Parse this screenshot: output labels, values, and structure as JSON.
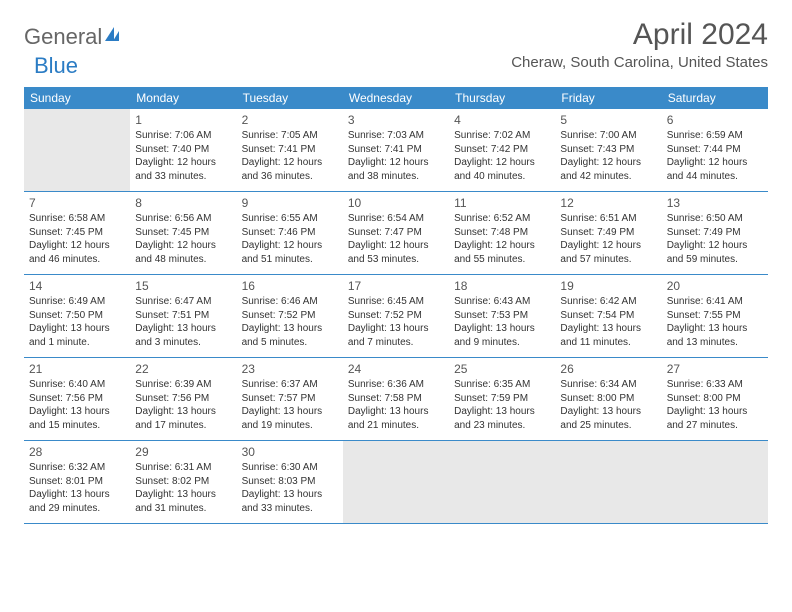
{
  "logo": {
    "part1": "General",
    "part2": "Blue"
  },
  "title": "April 2024",
  "location": "Cheraw, South Carolina, United States",
  "colors": {
    "header_bg": "#3a8ac9",
    "header_text": "#ffffff",
    "border": "#3a8ac9",
    "empty_bg": "#e8e8e8",
    "text": "#333333",
    "logo_gray": "#666666",
    "logo_blue": "#2b7cc4"
  },
  "weekdays": [
    "Sunday",
    "Monday",
    "Tuesday",
    "Wednesday",
    "Thursday",
    "Friday",
    "Saturday"
  ],
  "weeks": [
    [
      {
        "empty": true
      },
      {
        "n": "1",
        "sr": "Sunrise: 7:06 AM",
        "ss": "Sunset: 7:40 PM",
        "dl": "Daylight: 12 hours and 33 minutes."
      },
      {
        "n": "2",
        "sr": "Sunrise: 7:05 AM",
        "ss": "Sunset: 7:41 PM",
        "dl": "Daylight: 12 hours and 36 minutes."
      },
      {
        "n": "3",
        "sr": "Sunrise: 7:03 AM",
        "ss": "Sunset: 7:41 PM",
        "dl": "Daylight: 12 hours and 38 minutes."
      },
      {
        "n": "4",
        "sr": "Sunrise: 7:02 AM",
        "ss": "Sunset: 7:42 PM",
        "dl": "Daylight: 12 hours and 40 minutes."
      },
      {
        "n": "5",
        "sr": "Sunrise: 7:00 AM",
        "ss": "Sunset: 7:43 PM",
        "dl": "Daylight: 12 hours and 42 minutes."
      },
      {
        "n": "6",
        "sr": "Sunrise: 6:59 AM",
        "ss": "Sunset: 7:44 PM",
        "dl": "Daylight: 12 hours and 44 minutes."
      }
    ],
    [
      {
        "n": "7",
        "sr": "Sunrise: 6:58 AM",
        "ss": "Sunset: 7:45 PM",
        "dl": "Daylight: 12 hours and 46 minutes."
      },
      {
        "n": "8",
        "sr": "Sunrise: 6:56 AM",
        "ss": "Sunset: 7:45 PM",
        "dl": "Daylight: 12 hours and 48 minutes."
      },
      {
        "n": "9",
        "sr": "Sunrise: 6:55 AM",
        "ss": "Sunset: 7:46 PM",
        "dl": "Daylight: 12 hours and 51 minutes."
      },
      {
        "n": "10",
        "sr": "Sunrise: 6:54 AM",
        "ss": "Sunset: 7:47 PM",
        "dl": "Daylight: 12 hours and 53 minutes."
      },
      {
        "n": "11",
        "sr": "Sunrise: 6:52 AM",
        "ss": "Sunset: 7:48 PM",
        "dl": "Daylight: 12 hours and 55 minutes."
      },
      {
        "n": "12",
        "sr": "Sunrise: 6:51 AM",
        "ss": "Sunset: 7:49 PM",
        "dl": "Daylight: 12 hours and 57 minutes."
      },
      {
        "n": "13",
        "sr": "Sunrise: 6:50 AM",
        "ss": "Sunset: 7:49 PM",
        "dl": "Daylight: 12 hours and 59 minutes."
      }
    ],
    [
      {
        "n": "14",
        "sr": "Sunrise: 6:49 AM",
        "ss": "Sunset: 7:50 PM",
        "dl": "Daylight: 13 hours and 1 minute."
      },
      {
        "n": "15",
        "sr": "Sunrise: 6:47 AM",
        "ss": "Sunset: 7:51 PM",
        "dl": "Daylight: 13 hours and 3 minutes."
      },
      {
        "n": "16",
        "sr": "Sunrise: 6:46 AM",
        "ss": "Sunset: 7:52 PM",
        "dl": "Daylight: 13 hours and 5 minutes."
      },
      {
        "n": "17",
        "sr": "Sunrise: 6:45 AM",
        "ss": "Sunset: 7:52 PM",
        "dl": "Daylight: 13 hours and 7 minutes."
      },
      {
        "n": "18",
        "sr": "Sunrise: 6:43 AM",
        "ss": "Sunset: 7:53 PM",
        "dl": "Daylight: 13 hours and 9 minutes."
      },
      {
        "n": "19",
        "sr": "Sunrise: 6:42 AM",
        "ss": "Sunset: 7:54 PM",
        "dl": "Daylight: 13 hours and 11 minutes."
      },
      {
        "n": "20",
        "sr": "Sunrise: 6:41 AM",
        "ss": "Sunset: 7:55 PM",
        "dl": "Daylight: 13 hours and 13 minutes."
      }
    ],
    [
      {
        "n": "21",
        "sr": "Sunrise: 6:40 AM",
        "ss": "Sunset: 7:56 PM",
        "dl": "Daylight: 13 hours and 15 minutes."
      },
      {
        "n": "22",
        "sr": "Sunrise: 6:39 AM",
        "ss": "Sunset: 7:56 PM",
        "dl": "Daylight: 13 hours and 17 minutes."
      },
      {
        "n": "23",
        "sr": "Sunrise: 6:37 AM",
        "ss": "Sunset: 7:57 PM",
        "dl": "Daylight: 13 hours and 19 minutes."
      },
      {
        "n": "24",
        "sr": "Sunrise: 6:36 AM",
        "ss": "Sunset: 7:58 PM",
        "dl": "Daylight: 13 hours and 21 minutes."
      },
      {
        "n": "25",
        "sr": "Sunrise: 6:35 AM",
        "ss": "Sunset: 7:59 PM",
        "dl": "Daylight: 13 hours and 23 minutes."
      },
      {
        "n": "26",
        "sr": "Sunrise: 6:34 AM",
        "ss": "Sunset: 8:00 PM",
        "dl": "Daylight: 13 hours and 25 minutes."
      },
      {
        "n": "27",
        "sr": "Sunrise: 6:33 AM",
        "ss": "Sunset: 8:00 PM",
        "dl": "Daylight: 13 hours and 27 minutes."
      }
    ],
    [
      {
        "n": "28",
        "sr": "Sunrise: 6:32 AM",
        "ss": "Sunset: 8:01 PM",
        "dl": "Daylight: 13 hours and 29 minutes."
      },
      {
        "n": "29",
        "sr": "Sunrise: 6:31 AM",
        "ss": "Sunset: 8:02 PM",
        "dl": "Daylight: 13 hours and 31 minutes."
      },
      {
        "n": "30",
        "sr": "Sunrise: 6:30 AM",
        "ss": "Sunset: 8:03 PM",
        "dl": "Daylight: 13 hours and 33 minutes."
      },
      {
        "empty": true
      },
      {
        "empty": true
      },
      {
        "empty": true
      },
      {
        "empty": true
      }
    ]
  ]
}
